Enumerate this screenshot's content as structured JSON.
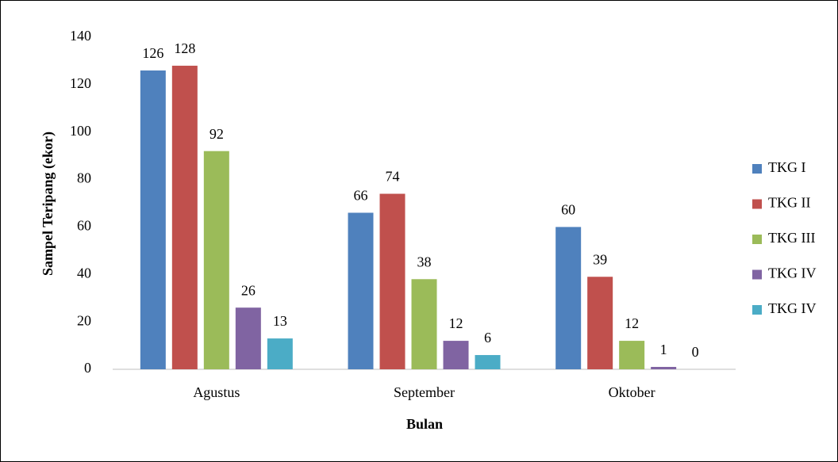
{
  "chart_data": {
    "type": "bar",
    "categories": [
      "Agustus",
      "September",
      "Oktober"
    ],
    "series": [
      {
        "name": "TKG I",
        "color": "#4f81bd",
        "values": [
          126,
          66,
          60
        ]
      },
      {
        "name": "TKG II",
        "color": "#c0504d",
        "values": [
          128,
          74,
          39
        ]
      },
      {
        "name": "TKG III",
        "color": "#9bbb59",
        "values": [
          92,
          38,
          12
        ]
      },
      {
        "name": "TKG IV",
        "color": "#8064a2",
        "values": [
          26,
          12,
          1
        ]
      },
      {
        "name": "TKG IV",
        "color": "#4bacc6",
        "values": [
          13,
          6,
          0
        ]
      }
    ],
    "ylim": [
      0,
      140
    ],
    "yticks": [
      0,
      20,
      40,
      60,
      80,
      100,
      120,
      140
    ],
    "xlabel": "Bulan",
    "ylabel": "Sampel Teripang (ekor)",
    "grid": false,
    "legend": "right"
  }
}
